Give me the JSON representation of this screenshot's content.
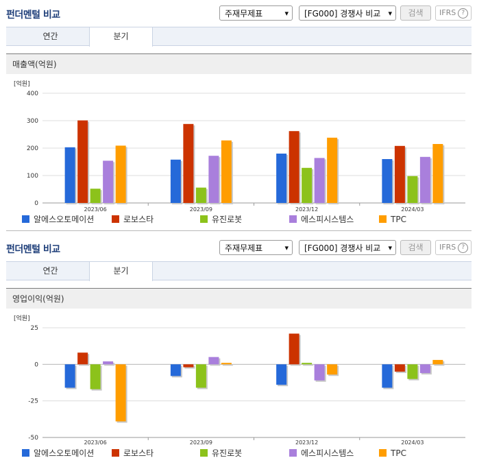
{
  "panels": [
    {
      "title": "펀더멘털 비교",
      "statement_select": "주재무제표",
      "compare_select": "[FG000] 경쟁사 비교",
      "search_label": "검색",
      "ifrs_label": "IFRS",
      "help_glyph": "?",
      "tabs": [
        {
          "label": "연간",
          "active": false
        },
        {
          "label": "분기",
          "active": true
        }
      ],
      "section_title": "매출액(억원)"
    },
    {
      "title": "펀더멘털 비교",
      "statement_select": "주재무제표",
      "compare_select": "[FG000] 경쟁사 비교",
      "search_label": "검색",
      "ifrs_label": "IFRS",
      "help_glyph": "?",
      "tabs": [
        {
          "label": "연간",
          "active": false
        },
        {
          "label": "분기",
          "active": true
        }
      ],
      "section_title": "영업이익(억원)"
    }
  ],
  "chart_data": [
    {
      "type": "bar",
      "unit_label": "[억원]",
      "categories": [
        "2023/06",
        "2023/09",
        "2023/12",
        "2024/03"
      ],
      "ylim": [
        0,
        400
      ],
      "yticks": [
        0,
        100,
        200,
        300,
        400
      ],
      "grid": true,
      "legend_position": "bottom",
      "series": [
        {
          "name": "알에스오토메이션",
          "color": "#2569d9",
          "values": [
            203,
            158,
            180,
            160
          ]
        },
        {
          "name": "로보스타",
          "color": "#cc3300",
          "values": [
            301,
            288,
            262,
            208
          ]
        },
        {
          "name": "유진로봇",
          "color": "#8cc21b",
          "values": [
            52,
            56,
            128,
            98
          ]
        },
        {
          "name": "에스피시스템스",
          "color": "#a97fdc",
          "values": [
            154,
            172,
            164,
            168
          ]
        },
        {
          "name": "TPC",
          "color": "#ff9d00",
          "values": [
            209,
            228,
            238,
            215
          ]
        }
      ]
    },
    {
      "type": "bar",
      "unit_label": "[억원]",
      "categories": [
        "2023/06",
        "2023/09",
        "2023/12",
        "2024/03"
      ],
      "ylim": [
        -50,
        25
      ],
      "yticks": [
        25,
        0,
        -25,
        -50
      ],
      "grid": true,
      "legend_position": "bottom",
      "series": [
        {
          "name": "알에스오토메이션",
          "color": "#2569d9",
          "values": [
            -16,
            -8,
            -14,
            -16
          ]
        },
        {
          "name": "로보스타",
          "color": "#cc3300",
          "values": [
            8,
            -2,
            21,
            -5
          ]
        },
        {
          "name": "유진로봇",
          "color": "#8cc21b",
          "values": [
            -17,
            -16,
            1,
            -10
          ]
        },
        {
          "name": "에스피시스템스",
          "color": "#a97fdc",
          "values": [
            2,
            5,
            -11,
            -6
          ]
        },
        {
          "name": "TPC",
          "color": "#ff9d00",
          "values": [
            -39,
            1,
            -7,
            3
          ]
        }
      ]
    }
  ]
}
